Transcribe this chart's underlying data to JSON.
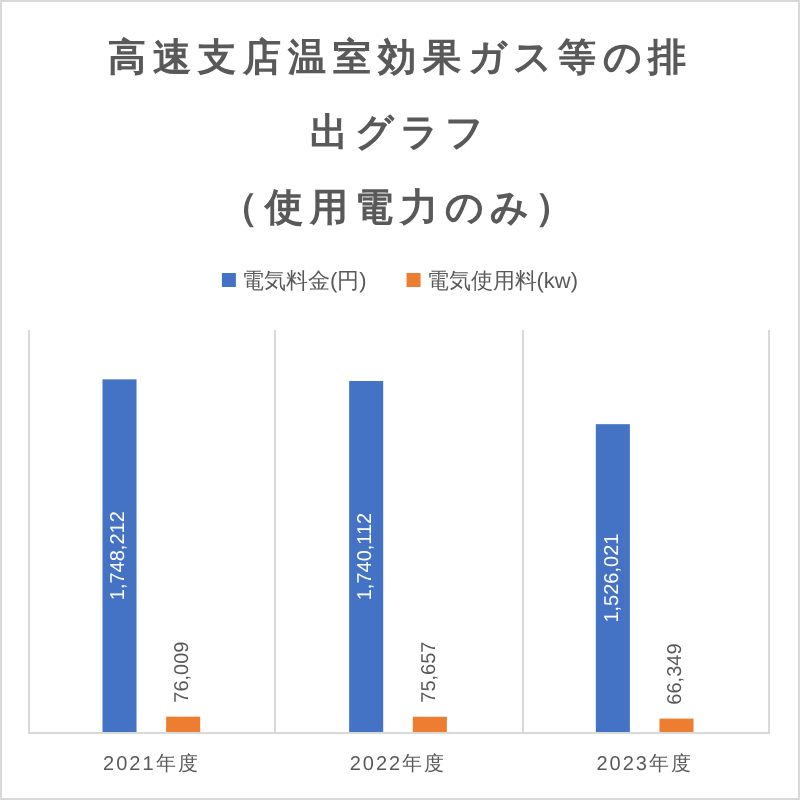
{
  "chart_data": {
    "type": "bar",
    "title": "高速支店温室効果ガス等の排出グラフ",
    "subtitle": "（使用電力のみ）",
    "categories": [
      "2021年度",
      "2022年度",
      "2023年度"
    ],
    "series": [
      {
        "name": "電気料金(円)",
        "color": "#4472c4",
        "values": [
          1748212,
          1740112,
          1526021
        ],
        "value_labels": [
          "1,748,212",
          "1,740,112",
          "1,526,021"
        ]
      },
      {
        "name": "電気使用料(kw)",
        "color": "#ed7d31",
        "values": [
          76009,
          75657,
          66349
        ],
        "value_labels": [
          "76,009",
          "75,657",
          "66,349"
        ]
      }
    ],
    "grid": "x",
    "legend": "top"
  }
}
